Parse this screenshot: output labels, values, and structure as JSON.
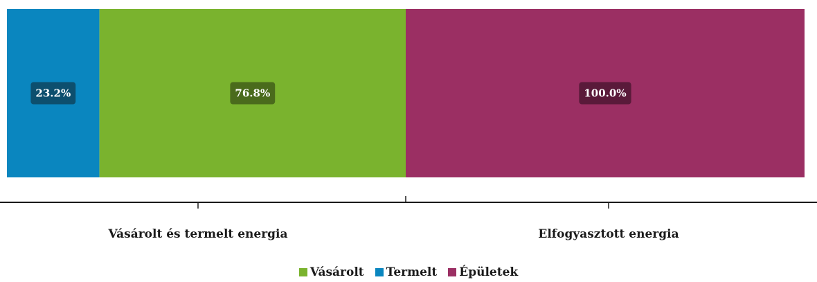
{
  "chart_data": {
    "type": "bar",
    "orientation": "horizontal",
    "stacked": true,
    "normalized": true,
    "categories": [
      "Vásárolt és termelt energia",
      "Elfogyasztott energia"
    ],
    "series": [
      {
        "name": "Termelt",
        "color": "#0a86bf",
        "label_bg": "#0d4f6e",
        "values": [
          23.2,
          0
        ]
      },
      {
        "name": "Vásárolt",
        "color": "#7ab32e",
        "label_bg": "#4a6b1c",
        "values": [
          76.8,
          0
        ]
      },
      {
        "name": "Épületek",
        "color": "#9b2f63",
        "label_bg": "#5a1a3a",
        "values": [
          0,
          100.0
        ]
      }
    ],
    "data_labels": [
      "23.2%",
      "76.8%",
      "100.0%"
    ],
    "legend": {
      "position": "bottom",
      "items": [
        {
          "name": "Vásárolt",
          "color": "#7ab32e"
        },
        {
          "name": "Termelt",
          "color": "#0a86bf"
        },
        {
          "name": "Épületek",
          "color": "#9b2f63"
        }
      ]
    },
    "title": "",
    "xlabel": "",
    "ylabel": "",
    "xlim": [
      0,
      200
    ],
    "grid": false
  }
}
